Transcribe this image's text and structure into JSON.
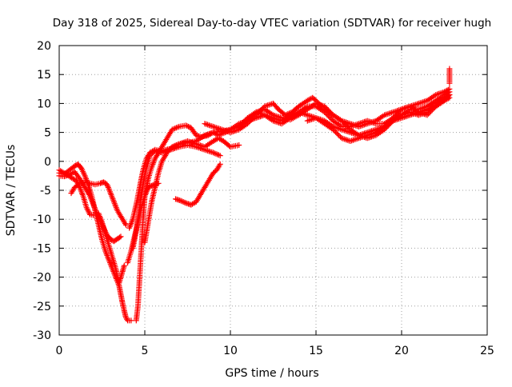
{
  "chart_data": {
    "type": "scatter",
    "title": "Day 318 of 2025, Sidereal Day-to-day VTEC variation (SDTVAR) for receiver hugh",
    "xlabel": "GPS time / hours",
    "ylabel": "SDTVAR / TECUs",
    "xlim": [
      0,
      25
    ],
    "ylim": [
      -30,
      20
    ],
    "xticks": [
      0,
      5,
      10,
      15,
      20,
      25
    ],
    "yticks": [
      -30,
      -25,
      -20,
      -15,
      -10,
      -5,
      0,
      5,
      10,
      15,
      20
    ],
    "grid": true,
    "marker": "+",
    "color": "#ff0000",
    "series": [
      {
        "points": [
          [
            0.0,
            -2.5
          ],
          [
            0.3,
            -2.6
          ],
          [
            0.6,
            -2.3
          ],
          [
            0.9,
            -1.8
          ],
          [
            1.2,
            -3.0
          ],
          [
            1.5,
            -4.5
          ],
          [
            1.8,
            -6.0
          ],
          [
            2.0,
            -7.5
          ],
          [
            2.2,
            -9.0
          ],
          [
            2.4,
            -10.2
          ],
          [
            2.6,
            -11.5
          ],
          [
            2.8,
            -12.8
          ],
          [
            3.0,
            -13.5
          ],
          [
            3.2,
            -13.8
          ],
          [
            3.4,
            -13.4
          ],
          [
            3.6,
            -13.0
          ]
        ]
      },
      {
        "points": [
          [
            0.0,
            -2.0
          ],
          [
            0.3,
            -2.2
          ],
          [
            0.6,
            -1.5
          ],
          [
            0.9,
            -0.8
          ],
          [
            1.1,
            -0.5
          ],
          [
            1.3,
            -1.2
          ],
          [
            1.5,
            -2.5
          ],
          [
            1.7,
            -4.0
          ],
          [
            1.9,
            -6.0
          ],
          [
            2.1,
            -8.5
          ],
          [
            2.3,
            -11.0
          ],
          [
            2.5,
            -13.5
          ],
          [
            2.7,
            -15.5
          ],
          [
            2.9,
            -17.0
          ],
          [
            3.1,
            -18.5
          ],
          [
            3.3,
            -20.0
          ],
          [
            3.5,
            -21.5
          ],
          [
            3.6,
            -23.0
          ],
          [
            3.7,
            -24.5
          ],
          [
            3.8,
            -25.8
          ],
          [
            3.9,
            -27.0
          ],
          [
            4.0,
            -27.5
          ],
          [
            4.2,
            -27.5
          ]
        ]
      },
      {
        "points": [
          [
            0.0,
            -1.5
          ],
          [
            0.4,
            -2.2
          ],
          [
            0.8,
            -3.0
          ],
          [
            1.0,
            -3.3
          ],
          [
            1.2,
            -4.5
          ],
          [
            1.4,
            -6.0
          ],
          [
            1.6,
            -8.0
          ],
          [
            1.8,
            -9.2
          ],
          [
            2.0,
            -9.3
          ]
        ]
      },
      {
        "points": [
          [
            0.7,
            -5.5
          ],
          [
            0.9,
            -4.5
          ],
          [
            1.2,
            -3.8
          ],
          [
            1.5,
            -3.6
          ],
          [
            1.8,
            -3.8
          ],
          [
            2.1,
            -4.0
          ],
          [
            2.4,
            -3.8
          ],
          [
            2.6,
            -3.6
          ],
          [
            2.8,
            -4.0
          ],
          [
            3.0,
            -5.5
          ],
          [
            3.2,
            -7.0
          ],
          [
            3.4,
            -8.5
          ],
          [
            3.6,
            -9.5
          ],
          [
            3.8,
            -10.5
          ],
          [
            3.9,
            -11.0
          ]
        ]
      },
      {
        "points": [
          [
            2.3,
            -9.0
          ],
          [
            2.5,
            -10.5
          ],
          [
            2.7,
            -12.5
          ],
          [
            2.9,
            -14.5
          ],
          [
            3.1,
            -16.5
          ],
          [
            3.3,
            -18.5
          ],
          [
            3.4,
            -20.0
          ],
          [
            3.5,
            -21.0
          ],
          [
            3.6,
            -20.0
          ],
          [
            3.7,
            -19.0
          ],
          [
            3.8,
            -18.0
          ]
        ]
      },
      {
        "points": [
          [
            4.0,
            -17.5
          ],
          [
            4.2,
            -15.5
          ],
          [
            4.4,
            -13.0
          ],
          [
            4.6,
            -10.5
          ],
          [
            4.8,
            -8.0
          ],
          [
            5.0,
            -6.0
          ],
          [
            5.2,
            -4.5
          ],
          [
            5.4,
            -4.2
          ],
          [
            5.6,
            -4.0
          ],
          [
            5.8,
            -3.8
          ]
        ]
      },
      {
        "points": [
          [
            4.1,
            -11.5
          ],
          [
            4.3,
            -10.0
          ],
          [
            4.5,
            -7.5
          ],
          [
            4.7,
            -4.5
          ],
          [
            4.9,
            -1.5
          ],
          [
            5.1,
            0.5
          ],
          [
            5.3,
            1.5
          ],
          [
            5.6,
            2.0
          ],
          [
            6.0,
            1.8
          ],
          [
            6.5,
            2.2
          ],
          [
            7.0,
            3.0
          ],
          [
            7.5,
            3.5
          ],
          [
            8.0,
            3.0
          ],
          [
            8.5,
            2.5
          ],
          [
            9.0,
            3.5
          ],
          [
            9.3,
            4.0
          ],
          [
            9.6,
            3.5
          ],
          [
            10.0,
            2.5
          ],
          [
            10.5,
            2.8
          ]
        ]
      },
      {
        "points": [
          [
            4.3,
            -15.0
          ],
          [
            4.5,
            -12.0
          ],
          [
            4.7,
            -8.0
          ],
          [
            4.9,
            -4.0
          ],
          [
            5.1,
            -1.0
          ],
          [
            5.3,
            1.0
          ],
          [
            5.6,
            1.8
          ],
          [
            6.0,
            1.5
          ],
          [
            6.5,
            2.0
          ],
          [
            7.0,
            2.5
          ],
          [
            7.5,
            2.8
          ],
          [
            8.0,
            2.5
          ],
          [
            8.5,
            2.0
          ],
          [
            9.0,
            1.5
          ],
          [
            9.4,
            1.0
          ]
        ]
      },
      {
        "points": [
          [
            4.5,
            -27.5
          ],
          [
            4.6,
            -25.0
          ],
          [
            4.7,
            -20.0
          ],
          [
            4.8,
            -15.0
          ],
          [
            4.9,
            -10.0
          ],
          [
            5.0,
            -6.0
          ],
          [
            5.2,
            -3.0
          ],
          [
            5.4,
            -1.0
          ],
          [
            5.6,
            0.5
          ],
          [
            5.8,
            1.5
          ],
          [
            6.0,
            2.5
          ],
          [
            6.3,
            4.0
          ],
          [
            6.6,
            5.5
          ],
          [
            7.0,
            6.0
          ],
          [
            7.4,
            6.2
          ],
          [
            7.7,
            5.8
          ],
          [
            8.0,
            4.5
          ],
          [
            8.3,
            4.2
          ],
          [
            8.7,
            4.5
          ],
          [
            9.0,
            5.0
          ],
          [
            9.3,
            4.5
          ],
          [
            9.7,
            5.0
          ],
          [
            10.0,
            5.5
          ],
          [
            10.5,
            6.0
          ],
          [
            11.0,
            7.5
          ],
          [
            11.5,
            8.5
          ],
          [
            12.0,
            9.0
          ],
          [
            12.5,
            8.0
          ],
          [
            13.0,
            7.5
          ],
          [
            13.5,
            7.2
          ],
          [
            14.0,
            8.0
          ],
          [
            14.5,
            9.0
          ],
          [
            15.0,
            10.0
          ],
          [
            15.5,
            9.5
          ],
          [
            16.0,
            8.0
          ],
          [
            16.5,
            7.0
          ],
          [
            17.0,
            6.5
          ],
          [
            17.5,
            6.0
          ],
          [
            18.0,
            6.5
          ],
          [
            18.5,
            7.0
          ],
          [
            19.0,
            8.0
          ],
          [
            19.5,
            8.5
          ],
          [
            20.0,
            9.0
          ],
          [
            20.5,
            9.5
          ],
          [
            21.0,
            10.0
          ],
          [
            21.5,
            10.5
          ],
          [
            22.0,
            11.5
          ],
          [
            22.5,
            12.0
          ],
          [
            22.8,
            12.5
          ]
        ]
      },
      {
        "points": [
          [
            5.0,
            -14.0
          ],
          [
            5.2,
            -10.5
          ],
          [
            5.4,
            -7.0
          ],
          [
            5.6,
            -4.5
          ],
          [
            5.8,
            -2.0
          ],
          [
            6.0,
            0.0
          ],
          [
            6.3,
            1.5
          ],
          [
            6.6,
            2.5
          ],
          [
            7.0,
            3.0
          ],
          [
            7.5,
            3.2
          ],
          [
            8.0,
            3.5
          ],
          [
            8.5,
            4.5
          ],
          [
            9.0,
            5.0
          ],
          [
            9.5,
            5.2
          ],
          [
            10.0,
            5.5
          ],
          [
            10.5,
            6.5
          ],
          [
            11.0,
            7.0
          ],
          [
            11.5,
            7.5
          ],
          [
            12.0,
            8.0
          ],
          [
            12.5,
            7.5
          ],
          [
            13.0,
            7.0
          ],
          [
            13.5,
            8.0
          ],
          [
            14.0,
            8.5
          ],
          [
            14.5,
            8.0
          ],
          [
            15.0,
            7.5
          ],
          [
            15.5,
            7.0
          ],
          [
            16.0,
            6.0
          ],
          [
            16.5,
            5.5
          ],
          [
            17.0,
            5.0
          ],
          [
            17.5,
            4.5
          ],
          [
            18.0,
            5.0
          ],
          [
            18.5,
            5.5
          ],
          [
            19.0,
            6.0
          ],
          [
            19.5,
            7.0
          ],
          [
            20.0,
            7.5
          ],
          [
            20.5,
            8.0
          ],
          [
            21.0,
            8.5
          ],
          [
            21.5,
            8.0
          ],
          [
            22.0,
            9.5
          ],
          [
            22.5,
            10.5
          ],
          [
            22.8,
            11.5
          ]
        ]
      },
      {
        "points": [
          [
            6.8,
            -6.5
          ],
          [
            7.1,
            -6.8
          ],
          [
            7.4,
            -7.2
          ],
          [
            7.7,
            -7.5
          ],
          [
            8.0,
            -7.0
          ],
          [
            8.2,
            -6.0
          ],
          [
            8.4,
            -5.0
          ],
          [
            8.6,
            -4.0
          ],
          [
            8.8,
            -3.0
          ],
          [
            9.0,
            -2.0
          ],
          [
            9.2,
            -1.5
          ],
          [
            9.4,
            -0.5
          ]
        ]
      },
      {
        "points": [
          [
            8.5,
            6.5
          ],
          [
            9.0,
            6.0
          ],
          [
            9.5,
            5.5
          ],
          [
            10.0,
            5.0
          ],
          [
            10.5,
            5.5
          ],
          [
            11.0,
            6.5
          ],
          [
            11.5,
            8.0
          ],
          [
            12.0,
            9.5
          ],
          [
            12.5,
            10.0
          ],
          [
            12.8,
            9.0
          ],
          [
            13.2,
            8.0
          ],
          [
            13.6,
            8.5
          ],
          [
            14.0,
            9.5
          ],
          [
            14.5,
            10.5
          ],
          [
            14.8,
            11.0
          ],
          [
            15.0,
            10.5
          ],
          [
            15.5,
            9.0
          ],
          [
            16.0,
            8.0
          ],
          [
            16.5,
            7.0
          ],
          [
            17.0,
            5.5
          ],
          [
            17.5,
            4.5
          ],
          [
            18.0,
            4.0
          ],
          [
            18.5,
            4.5
          ],
          [
            19.0,
            5.5
          ],
          [
            19.5,
            7.0
          ],
          [
            20.0,
            8.0
          ],
          [
            20.5,
            9.0
          ],
          [
            21.0,
            9.0
          ],
          [
            21.5,
            9.5
          ],
          [
            22.0,
            10.5
          ],
          [
            22.5,
            11.5
          ],
          [
            22.8,
            12.0
          ]
        ]
      },
      {
        "points": [
          [
            10.5,
            6.0
          ],
          [
            11.0,
            7.0
          ],
          [
            11.5,
            8.5
          ],
          [
            12.0,
            8.0
          ],
          [
            12.5,
            7.0
          ],
          [
            13.0,
            6.5
          ],
          [
            13.5,
            7.5
          ],
          [
            14.0,
            8.5
          ],
          [
            14.5,
            9.5
          ],
          [
            15.0,
            9.5
          ],
          [
            15.5,
            8.5
          ],
          [
            16.0,
            7.0
          ],
          [
            16.5,
            6.0
          ],
          [
            17.0,
            6.0
          ],
          [
            17.5,
            6.5
          ],
          [
            18.0,
            7.0
          ],
          [
            18.5,
            6.5
          ],
          [
            19.0,
            6.5
          ],
          [
            19.5,
            7.5
          ],
          [
            20.0,
            9.0
          ],
          [
            20.5,
            9.5
          ],
          [
            21.0,
            8.5
          ],
          [
            21.5,
            9.0
          ],
          [
            22.0,
            9.5
          ],
          [
            22.5,
            10.5
          ],
          [
            22.8,
            11.0
          ]
        ]
      },
      {
        "points": [
          [
            14.5,
            7.0
          ],
          [
            15.0,
            7.5
          ],
          [
            15.5,
            6.5
          ],
          [
            16.0,
            5.5
          ],
          [
            16.5,
            4.0
          ],
          [
            17.0,
            3.5
          ],
          [
            17.5,
            4.0
          ],
          [
            18.0,
            4.5
          ],
          [
            18.5,
            5.0
          ],
          [
            19.0,
            6.0
          ],
          [
            19.5,
            7.5
          ],
          [
            20.0,
            8.0
          ],
          [
            20.5,
            8.5
          ],
          [
            21.0,
            8.0
          ],
          [
            21.5,
            8.5
          ],
          [
            22.0,
            10.0
          ],
          [
            22.5,
            11.0
          ],
          [
            22.8,
            11.5
          ]
        ]
      },
      {
        "points": [
          [
            22.8,
            13.5
          ],
          [
            22.8,
            16.0
          ]
        ]
      }
    ]
  }
}
